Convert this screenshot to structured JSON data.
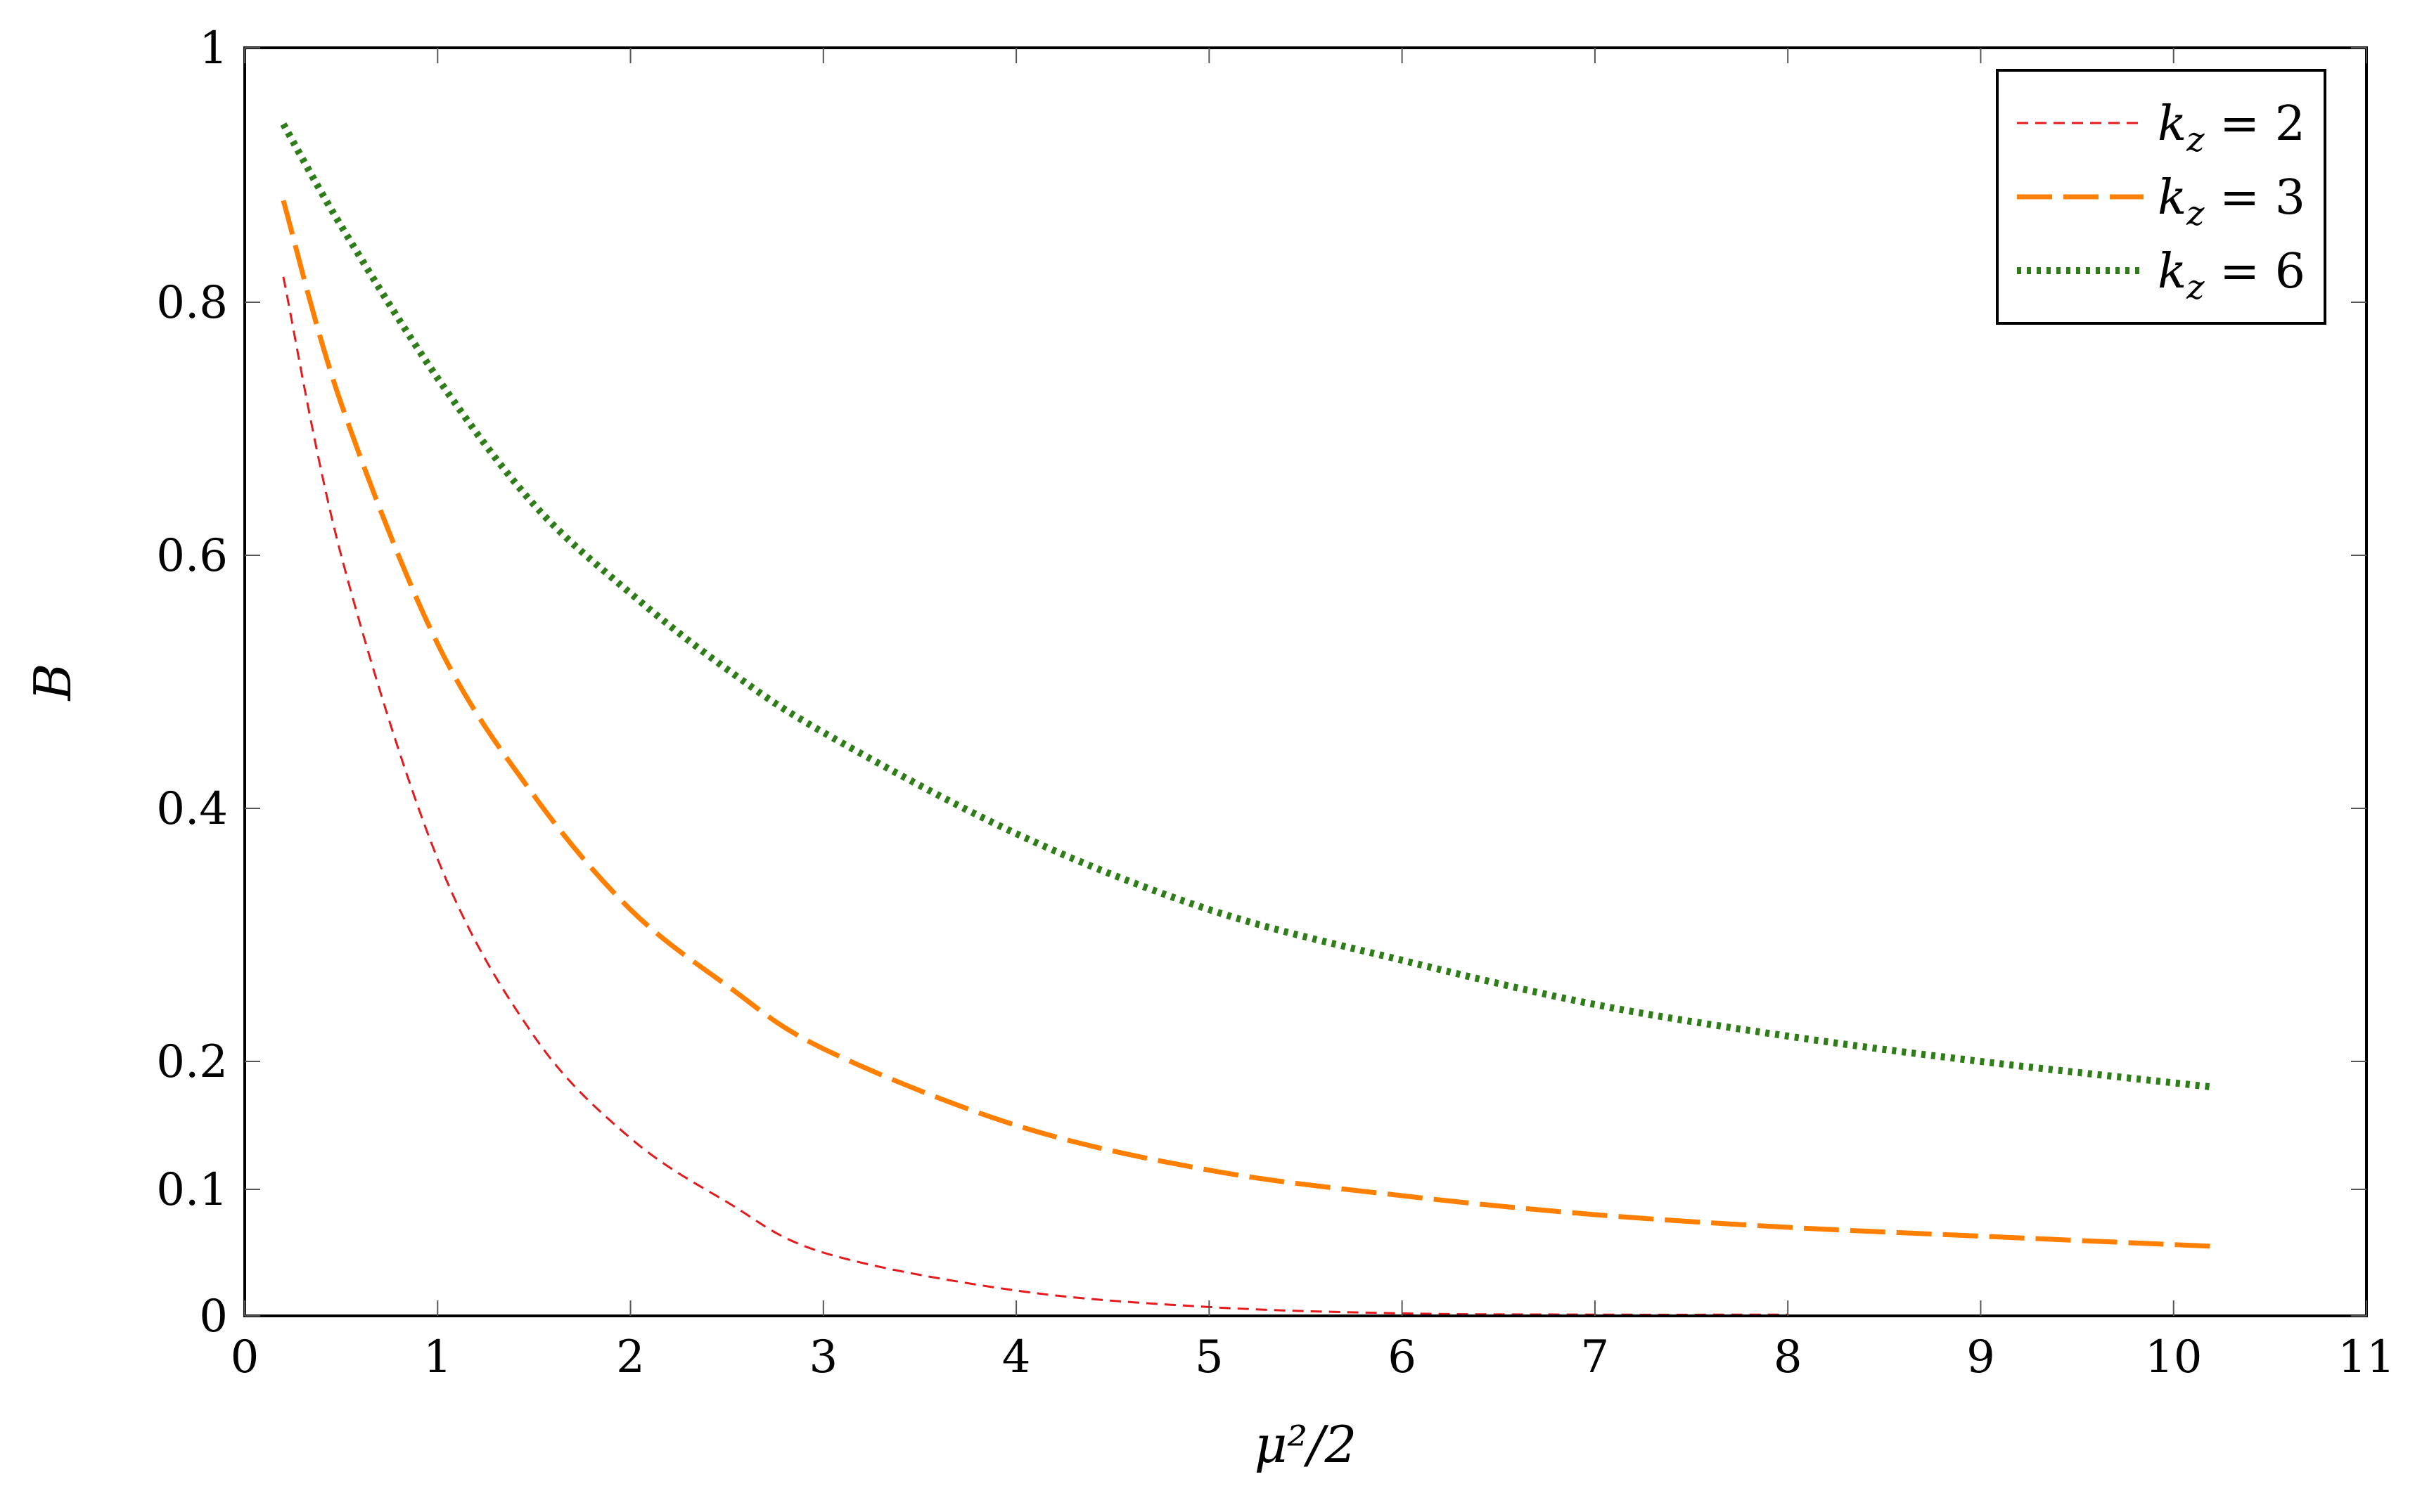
{
  "chart_data": {
    "type": "line",
    "xlabel": "μ²/2",
    "ylabel": "B",
    "xlim": [
      0,
      11
    ],
    "ylim": [
      0,
      1
    ],
    "y_scale": "piecewise-linear",
    "x_ticks": [
      0,
      1,
      2,
      3,
      4,
      5,
      6,
      7,
      8,
      9,
      10,
      11
    ],
    "y_ticks": [
      0,
      0.1,
      0.2,
      0.4,
      0.6,
      0.8,
      1
    ],
    "y_tick_labels": [
      "0",
      "0.1",
      "0.2",
      "0.4",
      "0.6",
      "0.8",
      "1"
    ],
    "grid": false,
    "legend_position": "top-right",
    "series": [
      {
        "name": "k_z = 2",
        "legend_label": {
          "var": "k",
          "sub": "z",
          "rest": " = 2"
        },
        "color": "#e41a1c",
        "style": "dashed-thin",
        "x": [
          0.2,
          0.5,
          1.0,
          1.5,
          2.0,
          2.5,
          3.0,
          4.0,
          5.0,
          6.0,
          7.0,
          8.0
        ],
        "y": [
          0.82,
          0.6,
          0.36,
          0.22,
          0.14,
          0.09,
          0.05,
          0.02,
          0.007,
          0.002,
          0.001,
          0.001
        ]
      },
      {
        "name": "k_z = 3",
        "legend_label": {
          "var": "k",
          "sub": "z",
          "rest": " = 3"
        },
        "color": "#ff8000",
        "style": "dashed-thick",
        "x": [
          0.2,
          0.5,
          1.0,
          1.5,
          2.0,
          2.5,
          3.0,
          4.0,
          5.0,
          6.0,
          7.0,
          8.0,
          9.0,
          10.2
        ],
        "y": [
          0.88,
          0.72,
          0.53,
          0.41,
          0.32,
          0.26,
          0.21,
          0.15,
          0.115,
          0.095,
          0.08,
          0.07,
          0.063,
          0.055
        ]
      },
      {
        "name": "k_z = 6",
        "legend_label": {
          "var": "k",
          "sub": "z",
          "rest": " = 6"
        },
        "color": "#2e7d18",
        "style": "dotted-thick",
        "x": [
          0.2,
          0.5,
          1.0,
          1.5,
          2.0,
          2.5,
          3.0,
          4.0,
          5.0,
          6.0,
          7.0,
          8.0,
          9.0,
          10.2
        ],
        "y": [
          0.94,
          0.86,
          0.74,
          0.64,
          0.57,
          0.51,
          0.46,
          0.38,
          0.32,
          0.28,
          0.245,
          0.22,
          0.2,
          0.18
        ]
      }
    ]
  }
}
